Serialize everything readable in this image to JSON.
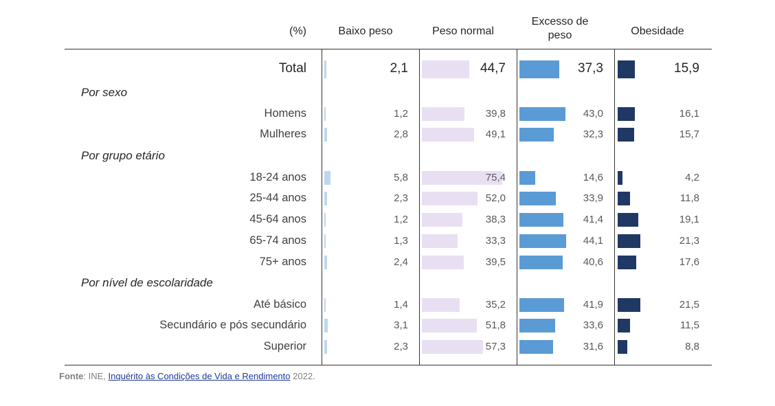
{
  "chart_data": {
    "type": "bar",
    "unit_header": "(%)",
    "columns": [
      {
        "name": "Baixo peso",
        "color": "#bdd7ee"
      },
      {
        "name": "Peso normal",
        "color": "#e8e0f2"
      },
      {
        "name": "Excesso de peso",
        "color": "#5b9bd5"
      },
      {
        "name": "Obesidade",
        "color": "#1f3864"
      }
    ],
    "rows": [
      {
        "kind": "data",
        "label": "Total",
        "total": true,
        "values": [
          "2,1",
          "44,7",
          "37,3",
          "15,9"
        ]
      },
      {
        "kind": "group",
        "label": "Por sexo"
      },
      {
        "kind": "data",
        "label": "Homens",
        "values": [
          "1,2",
          "39,8",
          "43,0",
          "16,1"
        ]
      },
      {
        "kind": "data",
        "label": "Mulheres",
        "values": [
          "2,8",
          "49,1",
          "32,3",
          "15,7"
        ]
      },
      {
        "kind": "group",
        "label": "Por grupo etário"
      },
      {
        "kind": "data",
        "label": "18-24 anos",
        "values": [
          "5,8",
          "75,4",
          "14,6",
          "4,2"
        ]
      },
      {
        "kind": "data",
        "label": "25-44 anos",
        "values": [
          "2,3",
          "52,0",
          "33,9",
          "11,8"
        ]
      },
      {
        "kind": "data",
        "label": "45-64 anos",
        "values": [
          "1,2",
          "38,3",
          "41,4",
          "19,1"
        ]
      },
      {
        "kind": "data",
        "label": "65-74 anos",
        "values": [
          "1,3",
          "33,3",
          "44,1",
          "21,3"
        ]
      },
      {
        "kind": "data",
        "label": "75+ anos",
        "values": [
          "2,4",
          "39,5",
          "40,6",
          "17,6"
        ]
      },
      {
        "kind": "group",
        "label": "Por nível de escolaridade"
      },
      {
        "kind": "data",
        "label": "Até básico",
        "values": [
          "1,4",
          "35,2",
          "41,9",
          "21,5"
        ]
      },
      {
        "kind": "data",
        "label": "Secundário e pós secundário",
        "values": [
          "3,1",
          "51,8",
          "33,6",
          "11,5"
        ]
      },
      {
        "kind": "data",
        "label": "Superior",
        "values": [
          "2,3",
          "57,3",
          "31,6",
          "8,8"
        ]
      }
    ]
  },
  "source": {
    "prefix": "Fonte",
    "text": ": INE, ",
    "link": "Inquérito às Condições de Vida e Rendimento",
    "suffix": " 2022."
  }
}
